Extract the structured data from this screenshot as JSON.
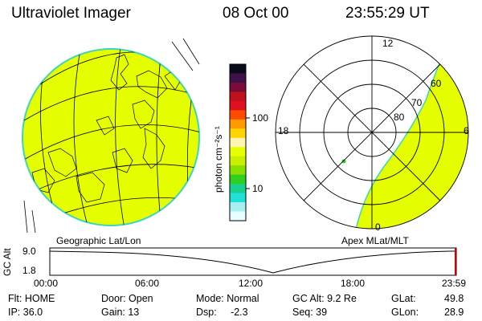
{
  "header": {
    "instrument": "Ultraviolet Imager",
    "date": "08 Oct 00",
    "time": "23:55:29 UT"
  },
  "colorbar": {
    "unit_label": "photon cm⁻²s⁻¹",
    "ticks": [
      "100",
      "10"
    ],
    "colors_top_to_bottom": [
      "#0a0a1a",
      "#40104a",
      "#7a0a3a",
      "#c0101a",
      "#e01020",
      "#ff4a00",
      "#ff9a00",
      "#ffd500",
      "#fff4b0",
      "#e8ff00",
      "#c8f000",
      "#88e000",
      "#30d020",
      "#18d090",
      "#20e0d8",
      "#a8f0f0",
      "#e8ffff"
    ],
    "highlight_color": "#e6ff00"
  },
  "geographic_panel": {
    "label": "Geographic Lat/Lon",
    "fill_color": "#e6ff00",
    "rim_color": "#3cd6b8"
  },
  "polar_panel": {
    "label": "Apex MLat/MLT",
    "mlt_labels": {
      "top": "12",
      "left": "18",
      "right": "6",
      "bottom": "0"
    },
    "lat_labels": [
      "60",
      "70",
      "80"
    ]
  },
  "altitude_strip": {
    "axis_label": "GC Alt",
    "y_ticks": [
      "9.0",
      "1.8"
    ],
    "x_ticks": [
      "00:00",
      "06:00",
      "12:00",
      "18:00",
      "23:59"
    ],
    "marker_color": "#cc0000"
  },
  "footer": {
    "flt": "Flt: HOME",
    "ip": "IP: 36.0",
    "door": "Door: Open",
    "gain": "Gain: 13",
    "mode": "Mode: Normal",
    "dsp": "Dsp:     -2.3",
    "gc_alt": "GC Alt: 9.2 Re",
    "seq": "Seq: 39",
    "glat_label": "GLat:",
    "glat_value": "49.8",
    "glon_label": "GLon:",
    "glon_value": "28.9"
  }
}
